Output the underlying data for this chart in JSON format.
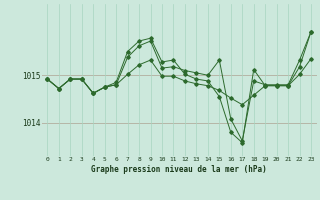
{
  "title": "Graphe pression niveau de la mer (hPa)",
  "bg_color": "#cce8dc",
  "line_color": "#2d6a2d",
  "grid_color": "#a8d4c0",
  "red_line_color": "#dd4444",
  "ytick_values": [
    1014,
    1015
  ],
  "xlim": [
    -0.5,
    23.5
  ],
  "ylim": [
    1013.3,
    1016.5
  ],
  "series1": [
    1014.92,
    1014.72,
    1014.92,
    1014.92,
    1014.62,
    1014.75,
    1014.8,
    1015.38,
    1015.62,
    1015.72,
    1015.15,
    1015.18,
    1015.1,
    1015.05,
    1015.0,
    1015.32,
    1014.08,
    1013.62,
    1014.88,
    1014.8,
    1014.8,
    1014.8,
    1015.32,
    1015.92
  ],
  "series2": [
    1014.92,
    1014.72,
    1014.92,
    1014.92,
    1014.62,
    1014.75,
    1014.85,
    1015.5,
    1015.72,
    1015.78,
    1015.28,
    1015.32,
    1015.02,
    1014.92,
    1014.88,
    1014.55,
    1013.8,
    1013.58,
    1015.12,
    1014.78,
    1014.78,
    1014.78,
    1015.18,
    1015.92
  ],
  "series3": [
    1014.92,
    1014.72,
    1014.92,
    1014.92,
    1014.62,
    1014.75,
    1014.8,
    1015.02,
    1015.22,
    1015.32,
    1014.98,
    1014.98,
    1014.88,
    1014.82,
    1014.78,
    1014.68,
    1014.52,
    1014.38,
    1014.58,
    1014.78,
    1014.78,
    1014.78,
    1015.02,
    1015.35
  ],
  "xtick_labels": [
    "0",
    "1",
    "2",
    "3",
    "4",
    "5",
    "6",
    "7",
    "8",
    "9",
    "10",
    "11",
    "12",
    "13",
    "14",
    "15",
    "16",
    "17",
    "18",
    "19",
    "20",
    "21",
    "22",
    "23"
  ],
  "figsize": [
    3.2,
    2.0
  ],
  "dpi": 100
}
